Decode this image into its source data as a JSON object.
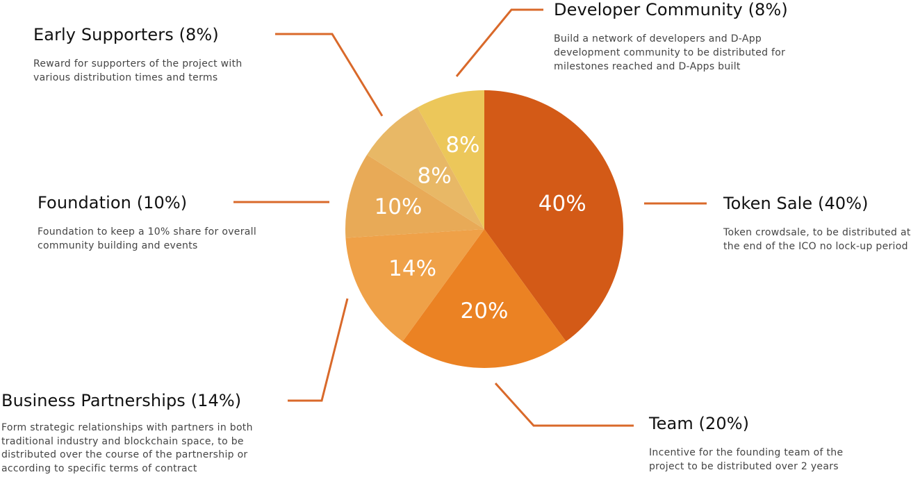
{
  "chart_data": {
    "type": "pie",
    "start_angle_deg": 0,
    "direction": "clockwise",
    "slices": [
      {
        "key": "token_sale",
        "label": "Token Sale (40%)",
        "value": 40,
        "percent_label": "40%",
        "color": "#D35A17",
        "description": "Token crowdsale, to be distributed at the end of the ICO no lock-up period"
      },
      {
        "key": "team",
        "label": "Team (20%)",
        "value": 20,
        "percent_label": "20%",
        "color": "#EB8223",
        "description": "Incentive for the founding team of the project to be distributed over 2 years"
      },
      {
        "key": "business",
        "label": "Business Partnerships (14%)",
        "value": 14,
        "percent_label": "14%",
        "color": "#EFA148",
        "description": "Form strategic relationships with partners in both traditional industry and blockchain space, to be distributed over the course of the partnership or according to specific terms of contract"
      },
      {
        "key": "foundation",
        "label": "Foundation (10%)",
        "value": 10,
        "percent_label": "10%",
        "color": "#E8AA57",
        "description": "Foundation to keep a 10% share for overall community building and events"
      },
      {
        "key": "early",
        "label": "Early Supporters (8%)",
        "value": 8,
        "percent_label": "8%",
        "color": "#E8B866",
        "description": "Reward for supporters of the project with various distribution times and terms"
      },
      {
        "key": "developer",
        "label": "Developer Community (8%)",
        "value": 8,
        "percent_label": "8%",
        "color": "#ECC75A",
        "description": "Build a network of developers and D-App development community to be distributed for milestones reached and D-Apps built"
      }
    ]
  },
  "colors": {
    "leader_line": "#D9692A",
    "title_text": "#111111",
    "description_text": "#444444",
    "slice_label": "#FFFFFF"
  }
}
